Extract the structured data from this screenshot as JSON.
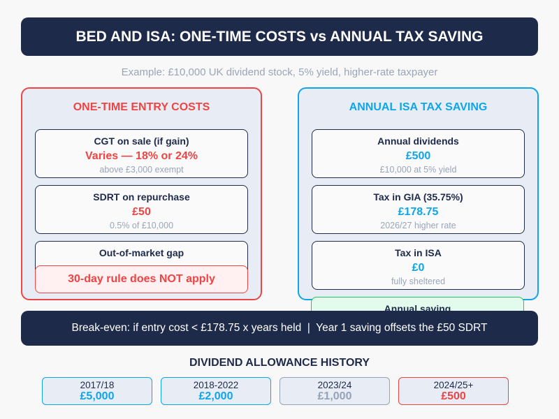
{
  "header": {
    "title": "BED AND ISA: ONE-TIME COSTS vs ANNUAL TAX SAVING"
  },
  "subtitle": "Example: £10,000 UK dividend stock, 5% yield, higher-rate taxpayer",
  "colors": {
    "navy": "#1e2a4a",
    "red": "#ef4444",
    "blue": "#0ea5e9",
    "grey": "#94a3b8",
    "green": "#22c55e"
  },
  "left": {
    "title": "ONE-TIME ENTRY COSTS",
    "cards": [
      {
        "title": "CGT on sale (if gain)",
        "value": "Varies — 18% or 24%",
        "note": "above £3,000 exempt"
      },
      {
        "title": "SDRT on repurchase",
        "value": "£50",
        "note": "0.5% of £10,000"
      },
      {
        "title": "Out-of-market gap"
      }
    ],
    "warning": "30-day rule does NOT apply"
  },
  "right": {
    "title": "ANNUAL ISA TAX SAVING",
    "cards": [
      {
        "title": "Annual dividends",
        "value": "£500",
        "note": "£10,000 at 5% yield"
      },
      {
        "title": "Tax in GIA (35.75%)",
        "value": "£178.75",
        "note": "2026/27 higher rate"
      },
      {
        "title": "Tax in ISA",
        "value": "£0",
        "note": "fully sheltered"
      }
    ],
    "saving_title": "Annual saving"
  },
  "banner": "Break-even: if entry cost < £178.75 x years held  |  Year 1 saving offsets the £50 SDRT",
  "history": {
    "title": "DIVIDEND ALLOWANCE HISTORY",
    "items": [
      {
        "year": "2017/18",
        "value": "£5,000",
        "color": "#0ea5e9"
      },
      {
        "year": "2018-2022",
        "value": "£2,000",
        "color": "#0ea5e9"
      },
      {
        "year": "2023/24",
        "value": "£1,000",
        "color": "#94a3b8"
      },
      {
        "year": "2024/25+",
        "value": "£500",
        "color": "#ef4444"
      }
    ]
  }
}
